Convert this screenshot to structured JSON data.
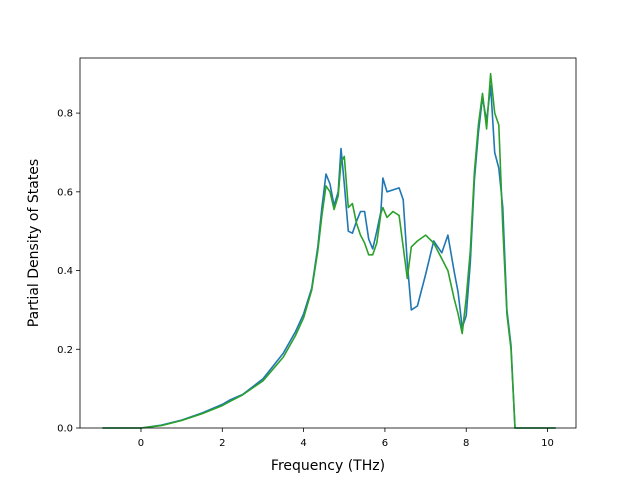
{
  "chart_data": {
    "type": "line",
    "xlabel": "Frequency (THz)",
    "ylabel": "Partial Density of States",
    "xlim": [
      -1.5,
      10.7
    ],
    "ylim": [
      0.0,
      0.94
    ],
    "xticks": [
      0,
      2,
      4,
      6,
      8,
      10
    ],
    "yticks": [
      0.0,
      0.2,
      0.4,
      0.6,
      0.8
    ],
    "xtick_labels": [
      "0",
      "2",
      "4",
      "6",
      "8",
      "10"
    ],
    "ytick_labels": [
      "0.0",
      "0.2",
      "0.4",
      "0.6",
      "0.8"
    ],
    "grid": false,
    "legend": "none",
    "series": [
      {
        "color": "#1f77b4",
        "x": [
          -0.95,
          0.0,
          0.5,
          1.0,
          1.5,
          2.0,
          2.2,
          2.5,
          3.0,
          3.5,
          3.8,
          4.0,
          4.2,
          4.35,
          4.45,
          4.55,
          4.65,
          4.75,
          4.85,
          4.92,
          5.0,
          5.1,
          5.2,
          5.3,
          5.4,
          5.5,
          5.6,
          5.7,
          5.8,
          5.9,
          5.95,
          6.05,
          6.2,
          6.35,
          6.45,
          6.55,
          6.65,
          6.8,
          7.0,
          7.2,
          7.4,
          7.55,
          7.7,
          7.8,
          7.9,
          8.0,
          8.1,
          8.2,
          8.3,
          8.4,
          8.5,
          8.6,
          8.7,
          8.8,
          8.9,
          9.0,
          9.1,
          9.2,
          9.3,
          10.2
        ],
        "y": [
          0.0,
          0.0,
          0.007,
          0.02,
          0.038,
          0.06,
          0.072,
          0.085,
          0.125,
          0.19,
          0.245,
          0.29,
          0.355,
          0.46,
          0.56,
          0.645,
          0.62,
          0.565,
          0.6,
          0.71,
          0.62,
          0.5,
          0.495,
          0.525,
          0.55,
          0.55,
          0.48,
          0.455,
          0.5,
          0.55,
          0.635,
          0.6,
          0.605,
          0.61,
          0.58,
          0.42,
          0.3,
          0.31,
          0.39,
          0.475,
          0.445,
          0.49,
          0.4,
          0.345,
          0.255,
          0.285,
          0.42,
          0.63,
          0.75,
          0.84,
          0.78,
          0.87,
          0.7,
          0.66,
          0.56,
          0.3,
          0.21,
          0.0,
          0.0,
          0.0
        ]
      },
      {
        "color": "#2ca02c",
        "x": [
          -0.95,
          0.0,
          0.5,
          1.0,
          1.5,
          2.0,
          2.2,
          2.5,
          3.0,
          3.5,
          3.8,
          4.0,
          4.2,
          4.35,
          4.45,
          4.55,
          4.65,
          4.75,
          4.85,
          4.92,
          5.0,
          5.1,
          5.2,
          5.3,
          5.4,
          5.5,
          5.6,
          5.7,
          5.8,
          5.9,
          5.95,
          6.05,
          6.2,
          6.35,
          6.45,
          6.55,
          6.65,
          6.8,
          7.0,
          7.2,
          7.4,
          7.55,
          7.7,
          7.8,
          7.9,
          8.0,
          8.1,
          8.2,
          8.3,
          8.4,
          8.5,
          8.6,
          8.7,
          8.8,
          8.9,
          9.0,
          9.1,
          9.2,
          9.3,
          10.2
        ],
        "y": [
          0.0,
          0.0,
          0.006,
          0.019,
          0.036,
          0.057,
          0.068,
          0.084,
          0.12,
          0.18,
          0.235,
          0.28,
          0.35,
          0.45,
          0.54,
          0.615,
          0.6,
          0.555,
          0.59,
          0.675,
          0.69,
          0.56,
          0.57,
          0.52,
          0.49,
          0.47,
          0.44,
          0.44,
          0.47,
          0.545,
          0.56,
          0.535,
          0.55,
          0.54,
          0.46,
          0.38,
          0.46,
          0.475,
          0.49,
          0.47,
          0.43,
          0.4,
          0.33,
          0.29,
          0.24,
          0.33,
          0.45,
          0.65,
          0.77,
          0.85,
          0.76,
          0.9,
          0.8,
          0.77,
          0.51,
          0.29,
          0.2,
          0.0,
          0.0,
          0.0
        ]
      }
    ]
  }
}
